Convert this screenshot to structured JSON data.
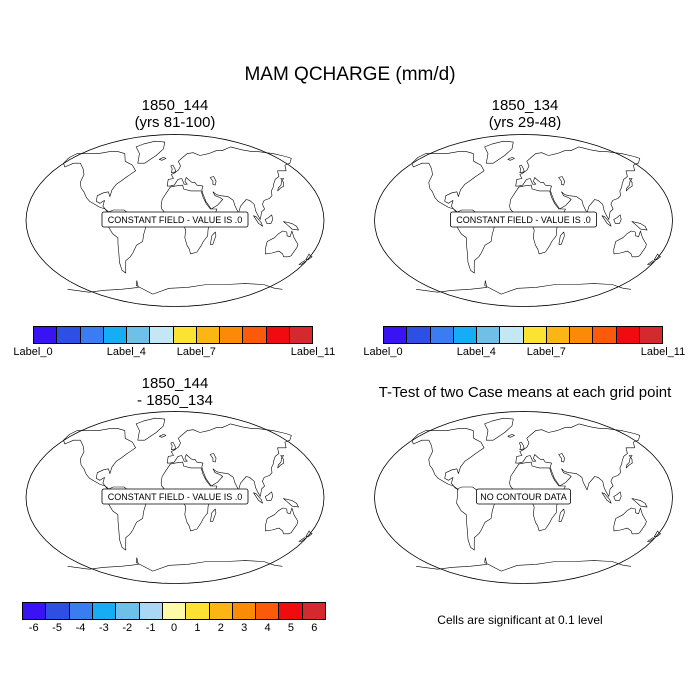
{
  "title": "MAM QCHARGE (mm/d)",
  "panels": [
    {
      "title_line1": "1850_144",
      "title_line2": "(yrs 81-100)",
      "box_text": "CONSTANT FIELD - VALUE IS .0"
    },
    {
      "title_line1": "1850_134",
      "title_line2": "(yrs 29-48)",
      "box_text": "CONSTANT FIELD - VALUE IS .0"
    },
    {
      "title_line1": "1850_144",
      "title_line2": "- 1850_134",
      "box_text": "CONSTANT FIELD - VALUE IS .0"
    },
    {
      "title_line1": "T-Test of two Case means at each grid point",
      "title_line2": "",
      "box_text": "NO CONTOUR DATA"
    }
  ],
  "colorbar_top": {
    "colors": [
      "#3a13f5",
      "#2d4fe3",
      "#3a7df0",
      "#17adf5",
      "#6ec0e9",
      "#c4e7f5",
      "#fde233",
      "#fbb515",
      "#fb8a07",
      "#fb5a0b",
      "#f00c0e",
      "#d42a2f"
    ],
    "labels": [
      "Label_0",
      "Label_4",
      "Label_7",
      "Label_11"
    ]
  },
  "colorbar_bottom": {
    "colors": [
      "#3a13f5",
      "#2d4fe3",
      "#3a7df0",
      "#17adf5",
      "#6ec0e9",
      "#a9d8f4",
      "#fdfbaa",
      "#fde233",
      "#fbb515",
      "#fb8a07",
      "#fb5a0b",
      "#f00c0e",
      "#d42a2f"
    ],
    "labels": [
      "-6",
      "-5",
      "-4",
      "-3",
      "-2",
      "-1",
      "0",
      "1",
      "2",
      "3",
      "4",
      "5",
      "6"
    ]
  },
  "significance_note": "Cells are significant at 0.1 level"
}
